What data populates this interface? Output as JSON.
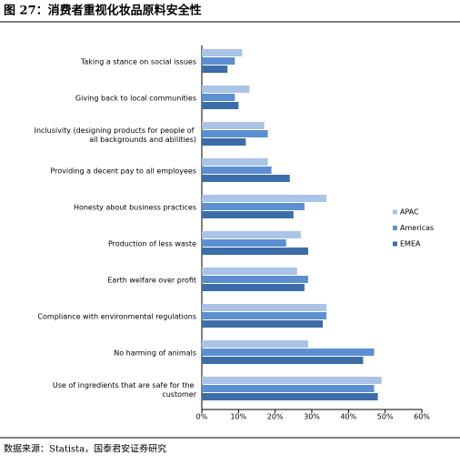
{
  "chart_data": {
    "type": "hbar",
    "title": "图 27：消费者重视化妆品原料安全性",
    "source": "数据来源：Statista，国泰君安证券研究",
    "categories": [
      "Taking a stance on social issues",
      "Giving back to local communities",
      "Inclusivity (designing products for people of all backgrounds and abilities)",
      "Providing a decent pay to all employees",
      "Honesty about business practices",
      "Production of less waste",
      "Earth welfare over profit",
      "Compliance with environmental regulations",
      "No harming of animals",
      "Use of ingredients that are safe for the customer"
    ],
    "series": [
      {
        "name": "APAC",
        "color": "#a9c4e6",
        "values": [
          11,
          13,
          17,
          18,
          34,
          27,
          26,
          34,
          29,
          49
        ]
      },
      {
        "name": "Americas",
        "color": "#5b8fd2",
        "values": [
          9,
          9,
          18,
          19,
          28,
          23,
          29,
          34,
          47,
          47
        ]
      },
      {
        "name": "EMEA",
        "color": "#3c6da8",
        "values": [
          7,
          10,
          12,
          24,
          25,
          29,
          28,
          33,
          44,
          48
        ]
      }
    ],
    "xlim": [
      0,
      60
    ],
    "xticks": [
      {
        "value": 0,
        "label": "0%"
      },
      {
        "value": 10,
        "label": "10%"
      },
      {
        "value": 20,
        "label": "20%"
      },
      {
        "value": 30,
        "label": "30%"
      },
      {
        "value": 40,
        "label": "40%"
      },
      {
        "value": 50,
        "label": "50%"
      },
      {
        "value": 60,
        "label": "60%"
      }
    ],
    "grid": false,
    "legend": "right"
  }
}
